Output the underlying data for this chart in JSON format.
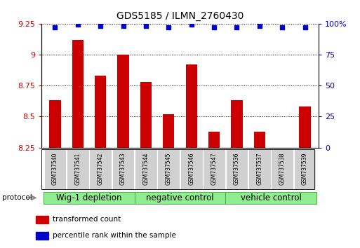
{
  "title": "GDS5185 / ILMN_2760430",
  "categories": [
    "GSM737540",
    "GSM737541",
    "GSM737542",
    "GSM737543",
    "GSM737544",
    "GSM737545",
    "GSM737546",
    "GSM737547",
    "GSM737536",
    "GSM737537",
    "GSM737538",
    "GSM737539"
  ],
  "bar_values": [
    8.63,
    9.12,
    8.83,
    9.0,
    8.78,
    8.52,
    8.92,
    8.38,
    8.63,
    8.38,
    8.25,
    8.58
  ],
  "percentile_values": [
    97,
    99,
    98,
    98,
    98,
    97,
    99,
    97,
    97,
    98,
    97,
    97
  ],
  "ylim_left": [
    8.25,
    9.25
  ],
  "ylim_right": [
    0,
    100
  ],
  "yticks_left": [
    8.25,
    8.5,
    8.75,
    9.0,
    9.25
  ],
  "yticks_right": [
    0,
    25,
    50,
    75,
    100
  ],
  "ytick_labels_left": [
    "8.25",
    "8.5",
    "8.75",
    "9",
    "9.25"
  ],
  "ytick_labels_right": [
    "0",
    "25",
    "50",
    "75",
    "100%"
  ],
  "bar_color": "#cc0000",
  "dot_color": "#0000cc",
  "groups": [
    {
      "label": "Wig-1 depletion",
      "start": 0,
      "end": 3
    },
    {
      "label": "negative control",
      "start": 4,
      "end": 7
    },
    {
      "label": "vehicle control",
      "start": 8,
      "end": 11
    }
  ],
  "protocol_label": "protocol",
  "legend_items": [
    {
      "color": "#cc0000",
      "label": "transformed count"
    },
    {
      "color": "#0000cc",
      "label": "percentile rank within the sample"
    }
  ],
  "bar_width": 0.5,
  "tick_label_color_left": "#cc0000",
  "tick_label_color_right": "#0000cc",
  "title_fontsize": 10,
  "axis_fontsize": 8,
  "group_label_fontsize": 8.5
}
